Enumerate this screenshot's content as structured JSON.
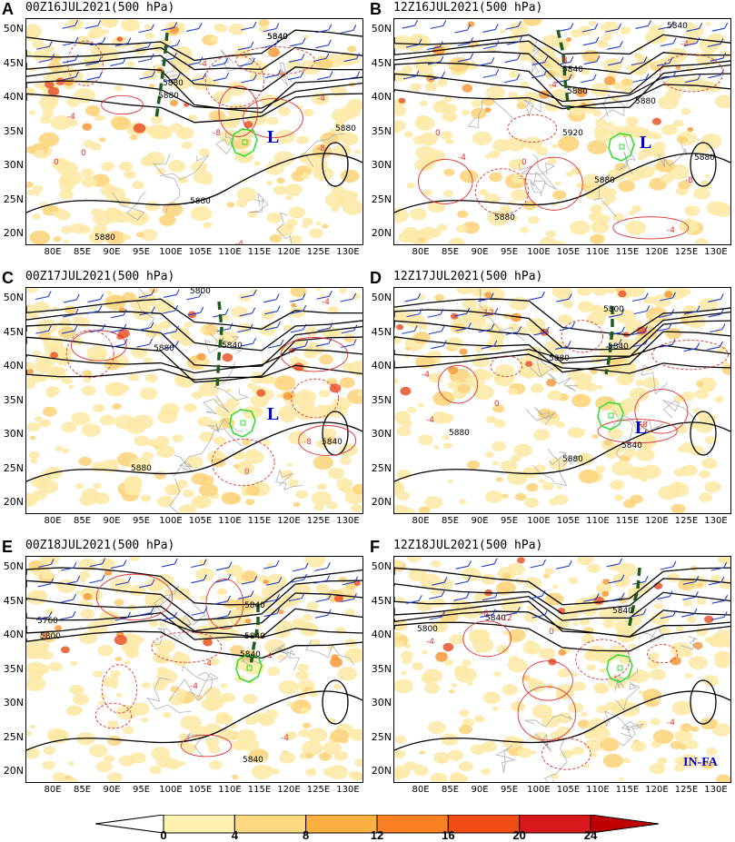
{
  "panels": [
    {
      "letter": "A",
      "title": "00Z16JUL2021(500 hPa)",
      "contour_labels": [
        "5840",
        "5880",
        "5880",
        "5880",
        "5880",
        "5880",
        "5840"
      ],
      "diff_labels": [
        "-4",
        "-8",
        "0",
        "-4",
        "-4",
        "0",
        "-8",
        "-4"
      ],
      "low_marks": [
        "L"
      ],
      "annotations": []
    },
    {
      "letter": "B",
      "title": "12Z16JUL2021(500 hPa)",
      "contour_labels": [
        "5840",
        "5840",
        "5880",
        "5880",
        "5920",
        "5880",
        "5880",
        "5880"
      ],
      "diff_labels": [
        "-4",
        "8",
        "-4",
        "0",
        "0",
        "-4",
        "-8",
        "-4"
      ],
      "low_marks": [
        "L"
      ],
      "annotations": []
    },
    {
      "letter": "C",
      "title": "00Z17JUL2021(500 hPa)",
      "contour_labels": [
        "5800",
        "5840",
        "5880",
        "5840",
        "5880"
      ],
      "diff_labels": [
        "-4",
        "-8",
        "0",
        "-4"
      ],
      "low_marks": [
        "L"
      ],
      "annotations": []
    },
    {
      "letter": "D",
      "title": "12Z17JUL2021(500 hPa)",
      "contour_labels": [
        "5800",
        "5840",
        "5880",
        "5880",
        "5880",
        "5840"
      ],
      "diff_labels": [
        "-12",
        "-4",
        "-4",
        "0",
        "-8"
      ],
      "low_marks": [
        "L"
      ],
      "annotations": []
    },
    {
      "letter": "E",
      "title": "00Z18JUL2021(500 hPa)",
      "contour_labels": [
        "5760",
        "5800",
        "5840",
        "5840",
        "5840",
        "5840"
      ],
      "diff_labels": [
        "-8",
        "-4",
        "4",
        "-4",
        "-4"
      ],
      "low_marks": [],
      "annotations": []
    },
    {
      "letter": "F",
      "title": "12Z18JUL2021(500 hPa)",
      "contour_labels": [
        "5840",
        "5840",
        "5800"
      ],
      "diff_labels": [
        "-12",
        "-8",
        "-4",
        "0",
        "-4"
      ],
      "low_marks": [],
      "annotations": [
        "IN-FA"
      ]
    }
  ],
  "axes": {
    "x_ticks": [
      "80E",
      "85E",
      "90E",
      "95E",
      "100E",
      "105E",
      "110E",
      "115E",
      "120E",
      "125E",
      "130E"
    ],
    "y_ticks": [
      "50N",
      "45N",
      "40N",
      "35N",
      "30N",
      "25N",
      "20N"
    ]
  },
  "colorbar": {
    "labels": [
      "0",
      "4",
      "8",
      "12",
      "16",
      "20",
      "24"
    ],
    "colors": [
      "#ffffff",
      "#fff2b0",
      "#fed880",
      "#fdb042",
      "#fb8021",
      "#f04b12",
      "#d7191c",
      "#c00000"
    ]
  },
  "colors": {
    "contour": "#000000",
    "diff": "#e03030",
    "barb": "#1f3fcc",
    "trough": "#1f5a1f",
    "region": "#33dd33",
    "low": "#0000cc",
    "border": "#b0b0b0"
  }
}
